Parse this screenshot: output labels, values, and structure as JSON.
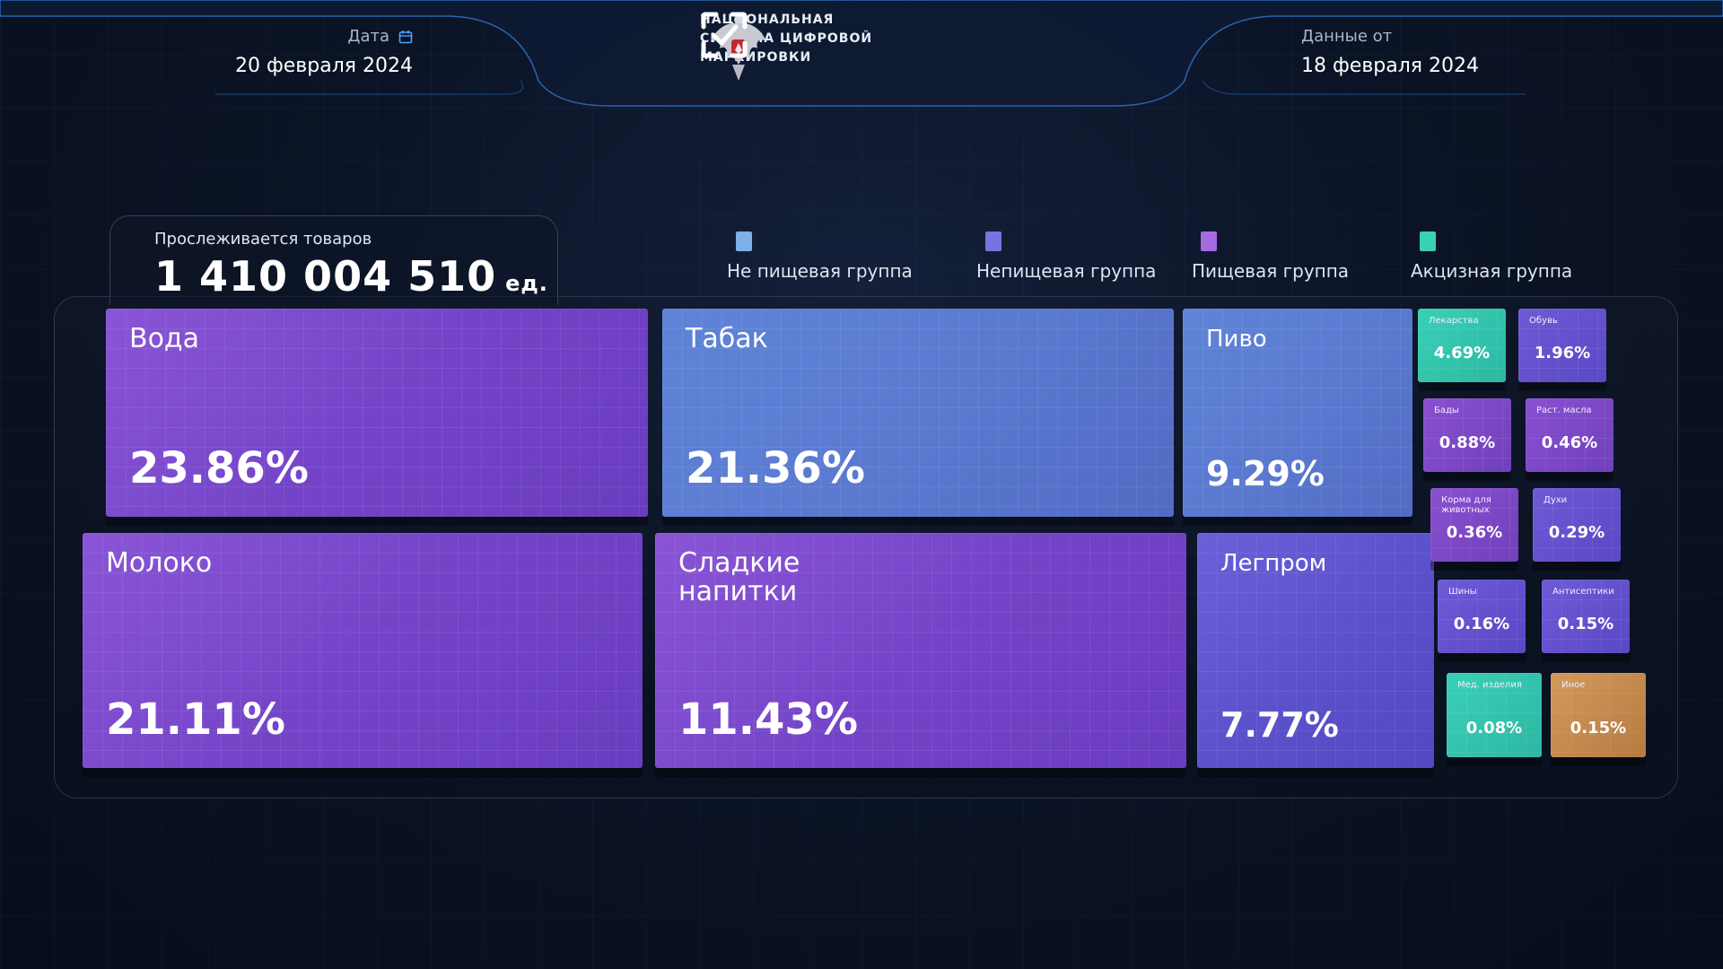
{
  "header": {
    "date_label": "Дата",
    "date_value": "20 февраля 2024",
    "data_from_label": "Данные от",
    "data_from_value": "18 февраля 2024",
    "brand_line1": "НАЦИОНАЛЬНАЯ",
    "brand_line2": "СИСТЕМА ЦИФРОВОЙ",
    "brand_line3": "МАРКИРОВКИ",
    "icons": [
      "calendar-icon",
      "coat-of-arms-icon",
      "brand-checkmark-icon"
    ]
  },
  "summary": {
    "label": "Прослеживается товаров",
    "value": "1 410 004 510",
    "unit": "ед."
  },
  "legend": [
    {
      "label": "Не пищевая группа",
      "color": "#7fb0e8"
    },
    {
      "label": "Непищевая группа",
      "color": "#7a72e0"
    },
    {
      "label": "Пищевая группа",
      "color": "#a46ae0"
    },
    {
      "label": "Акцизная группа",
      "color": "#3ad0b8"
    }
  ],
  "tiles": {
    "voda": {
      "name": "Вода",
      "pct": "23.86%"
    },
    "moloko": {
      "name": "Молоко",
      "pct": "21.11%"
    },
    "tabak": {
      "name": "Табак",
      "pct": "21.36%"
    },
    "napitki": {
      "name": "Сладкие напитки",
      "pct": "11.43%"
    },
    "pivo": {
      "name": "Пиво",
      "pct": "9.29%"
    },
    "legprom": {
      "name": "Легпром",
      "pct": "7.77%"
    },
    "lekarstva": {
      "name": "Лекарства",
      "pct": "4.69%"
    },
    "obuv": {
      "name": "Обувь",
      "pct": "1.96%"
    },
    "bady": {
      "name": "Бады",
      "pct": "0.88%"
    },
    "masla": {
      "name": "Раст. масла",
      "pct": "0.46%"
    },
    "korma": {
      "name": "Корма для животных",
      "pct": "0.36%"
    },
    "duhi": {
      "name": "Духи",
      "pct": "0.29%"
    },
    "shiny": {
      "name": "Шины",
      "pct": "0.16%"
    },
    "antiseptiki": {
      "name": "Антисептики",
      "pct": "0.15%"
    },
    "med": {
      "name": "Мед. изделия",
      "pct": "0.08%"
    },
    "inoe": {
      "name": "Иное",
      "pct": "0.15%"
    }
  }
}
